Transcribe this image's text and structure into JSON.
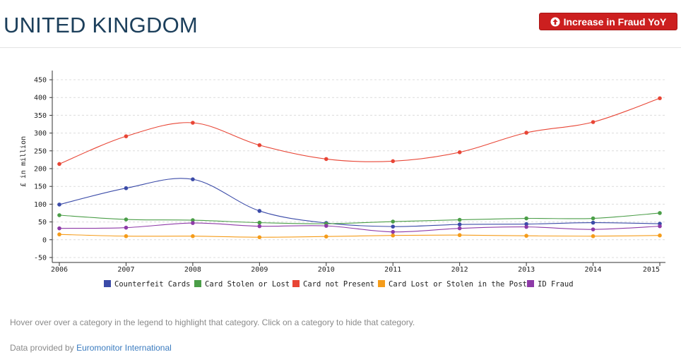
{
  "header": {
    "title": "UNITED KINGDOM",
    "button_label": "Increase in Fraud YoY",
    "button_icon": "circle-arrow-up-icon"
  },
  "colors": {
    "title": "#1c3f5b",
    "button": "#cc1f1f",
    "link": "#3a7bbf"
  },
  "chart_data": {
    "type": "line",
    "ylabel": "£ in million",
    "xlabel": "",
    "x": [
      "2006",
      "2007",
      "2008",
      "2009",
      "2010",
      "2011",
      "2012",
      "2013",
      "2014",
      "2015"
    ],
    "ylim": [
      -60,
      460
    ],
    "yticks": [
      -50,
      0,
      50,
      100,
      150,
      200,
      250,
      300,
      350,
      400,
      450
    ],
    "grid": true,
    "legend_position": "bottom",
    "series": [
      {
        "name": "Counterfeit Cards",
        "color": "#3b4ba8",
        "values": [
          99,
          145,
          170,
          81,
          47,
          37,
          43,
          44,
          48,
          45
        ]
      },
      {
        "name": "Card Stolen or Lost",
        "color": "#4b9e48",
        "values": [
          69,
          57,
          55,
          48,
          45,
          51,
          56,
          60,
          60,
          75
        ]
      },
      {
        "name": "Card not Present",
        "color": "#e84535",
        "values": [
          213,
          291,
          329,
          266,
          227,
          221,
          246,
          301,
          331,
          398
        ]
      },
      {
        "name": "Card Lost or Stolen in the Post",
        "color": "#f59c1a",
        "values": [
          15,
          10,
          10,
          7,
          9,
          12,
          13,
          11,
          10,
          12
        ]
      },
      {
        "name": "ID Fraud",
        "color": "#8e3aa8",
        "values": [
          32,
          34,
          47,
          38,
          39,
          22,
          32,
          36,
          29,
          38
        ]
      }
    ]
  },
  "footer": {
    "hint": "Hover over over a category in the legend to highlight that category. Click on a category to hide that category.",
    "credit_prefix": "Data provided by ",
    "credit_link": "Euromonitor International"
  }
}
